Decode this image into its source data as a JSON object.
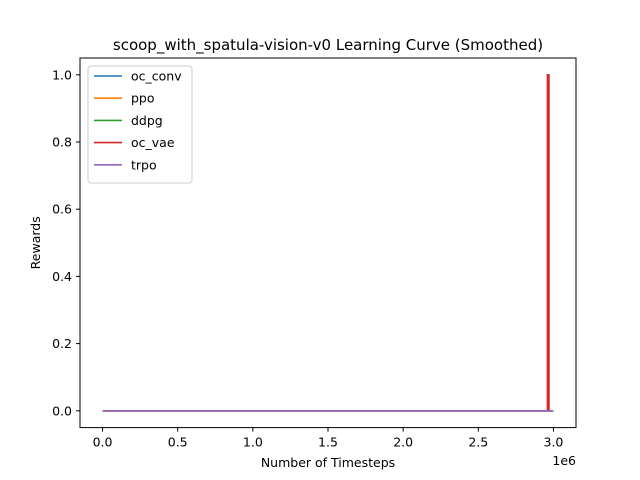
{
  "chart_data": {
    "type": "line",
    "title": "scoop_with_spatula-vision-v0 Learning Curve (Smoothed)",
    "xlabel": "Number of Timesteps",
    "ylabel": "Rewards",
    "x_offset_label": "1e6",
    "x_scale": 1000000,
    "xlim": [
      -150000,
      3150000
    ],
    "ylim": [
      -0.05,
      1.05
    ],
    "x_ticks": [
      0,
      500000,
      1000000,
      1500000,
      2000000,
      2500000,
      3000000
    ],
    "x_tick_labels": [
      "0.0",
      "0.5",
      "1.0",
      "1.5",
      "2.0",
      "2.5",
      "3.0"
    ],
    "y_ticks": [
      0.0,
      0.2,
      0.4,
      0.6,
      0.8,
      1.0
    ],
    "y_tick_labels": [
      "0.0",
      "0.2",
      "0.4",
      "0.6",
      "0.8",
      "1.0"
    ],
    "grid": false,
    "legend_position": "upper-left",
    "series": [
      {
        "name": "oc_conv",
        "color": "#1f77b4",
        "x": [
          0,
          3000000
        ],
        "y": [
          0,
          0
        ]
      },
      {
        "name": "ppo",
        "color": "#ff7f0e",
        "x": [
          0,
          3000000
        ],
        "y": [
          0,
          0
        ]
      },
      {
        "name": "ddpg",
        "color": "#2ca02c",
        "x": [
          0,
          3000000
        ],
        "y": [
          0,
          0
        ]
      },
      {
        "name": "oc_vae",
        "color": "#d62728",
        "x": [
          0,
          2960000,
          2960000,
          2970000,
          2970000,
          3000000
        ],
        "y": [
          0,
          0,
          1.0,
          1.0,
          0,
          0
        ]
      },
      {
        "name": "trpo",
        "color": "#9467bd",
        "x": [
          0,
          3000000
        ],
        "y": [
          0,
          0
        ]
      }
    ]
  }
}
